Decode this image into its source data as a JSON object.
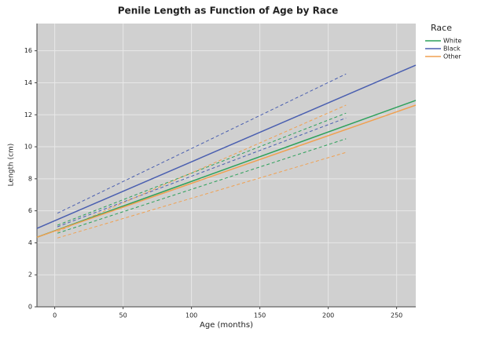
{
  "chart_data": {
    "type": "line",
    "title": "Penile Length as Function of Age by Race",
    "x_label": "Age (months)",
    "y_label": "Length (cm)",
    "legend_title": "Race",
    "legend": "right",
    "grid": true,
    "xlim": [
      -13,
      264
    ],
    "ylim": [
      0,
      17.7
    ],
    "xticks": [
      0,
      50,
      100,
      150,
      200,
      250
    ],
    "yticks": [
      0,
      2,
      4,
      6,
      8,
      10,
      12,
      14,
      16
    ],
    "series": [
      {
        "name": "White",
        "color": "#2ca05a",
        "x": [
          -13,
          264
        ],
        "values": [
          4.35,
          12.9
        ]
      },
      {
        "name": "Black",
        "color": "#4a5fb0",
        "x": [
          -13,
          264
        ],
        "values": [
          4.9,
          15.1
        ]
      },
      {
        "name": "Other",
        "color": "#f0a050",
        "x": [
          -13,
          264
        ],
        "values": [
          4.35,
          12.6
        ]
      }
    ],
    "bands": [
      {
        "color": "#2ca05a",
        "style": "dashed",
        "x": [
          2,
          213
        ],
        "upper": [
          5.1,
          12.1
        ],
        "lower": [
          4.6,
          10.5
        ]
      },
      {
        "color": "#4a5fb0",
        "style": "dashed",
        "x": [
          2,
          213
        ],
        "upper": [
          5.85,
          14.55
        ],
        "lower": [
          5.0,
          11.8
        ]
      },
      {
        "color": "#f0a050",
        "style": "dashed",
        "x": [
          2,
          213
        ],
        "upper": [
          4.7,
          12.6
        ],
        "lower": [
          4.3,
          9.65
        ]
      }
    ]
  }
}
